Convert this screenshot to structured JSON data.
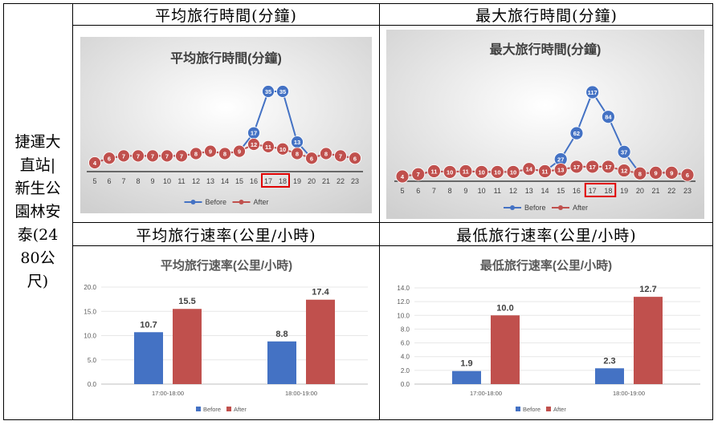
{
  "row_label": "捷運大直站|新生公園林安泰(2480公尺)",
  "charts": [
    {
      "header": "平均旅行時間(分鐘)",
      "chart_data": {
        "type": "line",
        "title": "平均旅行時間(分鐘)",
        "x": [
          "5",
          "6",
          "7",
          "8",
          "9",
          "10",
          "11",
          "12",
          "13",
          "14",
          "15",
          "16",
          "17",
          "18",
          "19",
          "20",
          "21",
          "22",
          "23"
        ],
        "series": [
          {
            "name": "Before",
            "color": "#4472c4",
            "values": [
              4,
              6,
              7,
              7,
              7,
              7,
              7,
              8,
              9,
              8,
              9,
              17,
              35,
              35,
              13,
              6,
              8,
              7,
              6
            ]
          },
          {
            "name": "After",
            "color": "#c0504d",
            "values": [
              4,
              6,
              7,
              7,
              7,
              7,
              7,
              8,
              9,
              8,
              9,
              12,
              11,
              10,
              8,
              6,
              8,
              7,
              6
            ]
          }
        ],
        "highlight": [
          "17",
          "18"
        ],
        "legend": "bottom"
      }
    },
    {
      "header": "最大旅行時間(分鐘)",
      "chart_data": {
        "type": "line",
        "title": "最大旅行時間(分鐘)",
        "x": [
          "5",
          "6",
          "7",
          "8",
          "9",
          "10",
          "11",
          "12",
          "13",
          "14",
          "15",
          "16",
          "17",
          "18",
          "19",
          "20",
          "21",
          "22",
          "23"
        ],
        "series": [
          {
            "name": "Before",
            "color": "#4472c4",
            "values": [
              4,
              7,
              11,
              10,
              11,
              10,
              10,
              10,
              14,
              11,
              27,
              62,
              117,
              84,
              37,
              8,
              9,
              9,
              6
            ]
          },
          {
            "name": "After",
            "color": "#c0504d",
            "values": [
              4,
              7,
              11,
              10,
              11,
              10,
              10,
              10,
              14,
              11,
              13,
              17,
              17,
              17,
              12,
              8,
              9,
              9,
              6
            ]
          }
        ],
        "highlight": [
          "17",
          "18"
        ],
        "legend": "bottom"
      }
    },
    {
      "header": "平均旅行速率(公里/小時)",
      "chart_data": {
        "type": "bar",
        "title": "平均旅行速率(公里/小時)",
        "categories": [
          "17:00-18:00",
          "18:00-19:00"
        ],
        "series": [
          {
            "name": "Before",
            "color": "#4472c4",
            "values": [
              10.7,
              8.8
            ]
          },
          {
            "name": "After",
            "color": "#c0504d",
            "values": [
              15.5,
              17.4
            ]
          }
        ],
        "ylim": [
          0,
          20
        ],
        "yticks": [
          "0.0",
          "5.0",
          "10.0",
          "15.0",
          "20.0"
        ],
        "legend": "bottom"
      }
    },
    {
      "header": "最低旅行速率(公里/小時)",
      "chart_data": {
        "type": "bar",
        "title": "最低旅行速率(公里/小時)",
        "categories": [
          "17:00-18:00",
          "18:00-19:00"
        ],
        "series": [
          {
            "name": "Before",
            "color": "#4472c4",
            "values": [
              1.9,
              2.3
            ]
          },
          {
            "name": "After",
            "color": "#c0504d",
            "values": [
              10.0,
              12.7
            ]
          }
        ],
        "ylim": [
          0,
          14
        ],
        "yticks": [
          "0.0",
          "2.0",
          "4.0",
          "6.0",
          "8.0",
          "10.0",
          "12.0",
          "14.0"
        ],
        "legend": "bottom"
      }
    }
  ]
}
